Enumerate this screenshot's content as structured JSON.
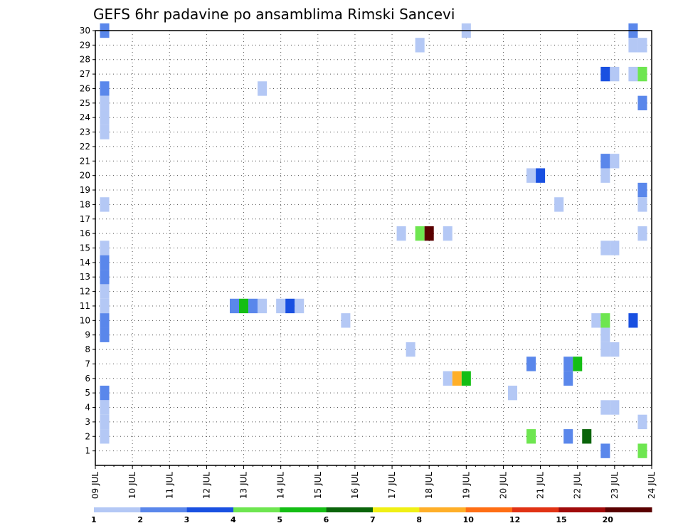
{
  "chart_data": {
    "type": "heatmap",
    "title": "GEFS 6hr padavine po ansamblima Rimski Sancevi",
    "xlabel": "",
    "ylabel": "",
    "x_tick_labels": [
      "09 JUL",
      "10 JUL",
      "11 JUL",
      "12 JUL",
      "13 JUL",
      "14 JUL",
      "15 JUL",
      "16 JUL",
      "17 JUL",
      "18 JUL",
      "19 JUL",
      "20 JUL",
      "21 JUL",
      "22 JUL",
      "23 JUL",
      "24 JUL"
    ],
    "y_tick_labels": [
      "1",
      "2",
      "3",
      "4",
      "5",
      "6",
      "7",
      "8",
      "9",
      "10",
      "11",
      "12",
      "13",
      "14",
      "15",
      "16",
      "17",
      "18",
      "19",
      "20",
      "21",
      "22",
      "23",
      "24",
      "25",
      "26",
      "27",
      "28",
      "29",
      "30"
    ],
    "xlim_days": [
      9,
      24
    ],
    "ylim": [
      0,
      30
    ],
    "grid": true,
    "colorbar": {
      "placement": "bottom",
      "boundaries": [
        1,
        2,
        3,
        4,
        5,
        6,
        7,
        8,
        10,
        12,
        15,
        20
      ],
      "labels": [
        "1",
        "2",
        "3",
        "4",
        "5",
        "6",
        "7",
        "8",
        "10",
        "12",
        "15",
        "20"
      ],
      "colors": [
        "#b4c8f5",
        "#5a87eb",
        "#1950e1",
        "#6ee650",
        "#14be14",
        "#0a640a",
        "#f0f014",
        "#ffaf28",
        "#ff6e14",
        "#e13214",
        "#a00a0a",
        "#5a0000"
      ]
    },
    "cells": [
      {
        "m": 30,
        "t": "09 JUL 06",
        "c": 2
      },
      {
        "m": 26,
        "t": "09 JUL 06",
        "c": 2
      },
      {
        "m": 25,
        "t": "09 JUL 06",
        "c": 1
      },
      {
        "m": 24,
        "t": "09 JUL 06",
        "c": 1
      },
      {
        "m": 23,
        "t": "09 JUL 06",
        "c": 1
      },
      {
        "m": 18,
        "t": "09 JUL 06",
        "c": 1
      },
      {
        "m": 15,
        "t": "09 JUL 06",
        "c": 1
      },
      {
        "m": 14,
        "t": "09 JUL 06",
        "c": 2
      },
      {
        "m": 13,
        "t": "09 JUL 06",
        "c": 2
      },
      {
        "m": 12,
        "t": "09 JUL 06",
        "c": 1
      },
      {
        "m": 11,
        "t": "09 JUL 06",
        "c": 1
      },
      {
        "m": 10,
        "t": "09 JUL 06",
        "c": 2
      },
      {
        "m": 9,
        "t": "09 JUL 06",
        "c": 2
      },
      {
        "m": 5,
        "t": "09 JUL 06",
        "c": 2
      },
      {
        "m": 4,
        "t": "09 JUL 06",
        "c": 1
      },
      {
        "m": 3,
        "t": "09 JUL 06",
        "c": 1
      },
      {
        "m": 2,
        "t": "09 JUL 06",
        "c": 1
      },
      {
        "m": 26,
        "t": "13 JUL 12",
        "c": 1
      },
      {
        "m": 11,
        "t": "12 JUL 18",
        "c": 2
      },
      {
        "m": 11,
        "t": "13 JUL 00",
        "c": 5
      },
      {
        "m": 11,
        "t": "13 JUL 06",
        "c": 2
      },
      {
        "m": 11,
        "t": "13 JUL 12",
        "c": 1
      },
      {
        "m": 11,
        "t": "14 JUL 00",
        "c": 1
      },
      {
        "m": 11,
        "t": "14 JUL 06",
        "c": 3
      },
      {
        "m": 11,
        "t": "14 JUL 12",
        "c": 1
      },
      {
        "m": 10,
        "t": "15 JUL 18",
        "c": 1
      },
      {
        "m": 16,
        "t": "17 JUL 06",
        "c": 1
      },
      {
        "m": 16,
        "t": "17 JUL 18",
        "c": 4
      },
      {
        "m": 16,
        "t": "18 JUL 00",
        "c": 12
      },
      {
        "m": 16,
        "t": "18 JUL 12",
        "c": 1
      },
      {
        "m": 8,
        "t": "17 JUL 12",
        "c": 1
      },
      {
        "m": 29,
        "t": "17 JUL 18",
        "c": 1
      },
      {
        "m": 30,
        "t": "19 JUL 00",
        "c": 1
      },
      {
        "m": 6,
        "t": "18 JUL 12",
        "c": 1
      },
      {
        "m": 6,
        "t": "18 JUL 18",
        "c": 8
      },
      {
        "m": 6,
        "t": "19 JUL 00",
        "c": 5
      },
      {
        "m": 5,
        "t": "20 JUL 06",
        "c": 1
      },
      {
        "m": 20,
        "t": "20 JUL 18",
        "c": 1
      },
      {
        "m": 20,
        "t": "21 JUL 00",
        "c": 3
      },
      {
        "m": 7,
        "t": "20 JUL 18",
        "c": 2
      },
      {
        "m": 2,
        "t": "20 JUL 18",
        "c": 4
      },
      {
        "m": 18,
        "t": "21 JUL 12",
        "c": 1
      },
      {
        "m": 7,
        "t": "21 JUL 18",
        "c": 2
      },
      {
        "m": 7,
        "t": "22 JUL 00",
        "c": 5
      },
      {
        "m": 6,
        "t": "21 JUL 18",
        "c": 2
      },
      {
        "m": 2,
        "t": "21 JUL 18",
        "c": 2
      },
      {
        "m": 2,
        "t": "22 JUL 06",
        "c": 6
      },
      {
        "m": 10,
        "t": "22 JUL 12",
        "c": 1
      },
      {
        "m": 10,
        "t": "22 JUL 18",
        "c": 4
      },
      {
        "m": 27,
        "t": "22 JUL 18",
        "c": 3
      },
      {
        "m": 27,
        "t": "23 JUL 00",
        "c": 1
      },
      {
        "m": 21,
        "t": "22 JUL 18",
        "c": 2
      },
      {
        "m": 21,
        "t": "23 JUL 00",
        "c": 1
      },
      {
        "m": 20,
        "t": "22 JUL 18",
        "c": 1
      },
      {
        "m": 15,
        "t": "22 JUL 18",
        "c": 1
      },
      {
        "m": 15,
        "t": "23 JUL 00",
        "c": 1
      },
      {
        "m": 9,
        "t": "22 JUL 18",
        "c": 1
      },
      {
        "m": 8,
        "t": "22 JUL 18",
        "c": 1
      },
      {
        "m": 8,
        "t": "23 JUL 00",
        "c": 1
      },
      {
        "m": 4,
        "t": "22 JUL 18",
        "c": 1
      },
      {
        "m": 4,
        "t": "23 JUL 00",
        "c": 1
      },
      {
        "m": 1,
        "t": "22 JUL 18",
        "c": 2
      },
      {
        "m": 30,
        "t": "23 JUL 12",
        "c": 2
      },
      {
        "m": 29,
        "t": "23 JUL 12",
        "c": 1
      },
      {
        "m": 29,
        "t": "23 JUL 18",
        "c": 1
      },
      {
        "m": 27,
        "t": "23 JUL 12",
        "c": 1
      },
      {
        "m": 27,
        "t": "23 JUL 18",
        "c": 4
      },
      {
        "m": 10,
        "t": "23 JUL 12",
        "c": 3
      },
      {
        "m": 25,
        "t": "23 JUL 18",
        "c": 2
      },
      {
        "m": 19,
        "t": "23 JUL 18",
        "c": 2
      },
      {
        "m": 18,
        "t": "23 JUL 18",
        "c": 1
      },
      {
        "m": 16,
        "t": "23 JUL 18",
        "c": 1
      },
      {
        "m": 3,
        "t": "23 JUL 18",
        "c": 1
      },
      {
        "m": 1,
        "t": "23 JUL 18",
        "c": 4
      }
    ]
  }
}
